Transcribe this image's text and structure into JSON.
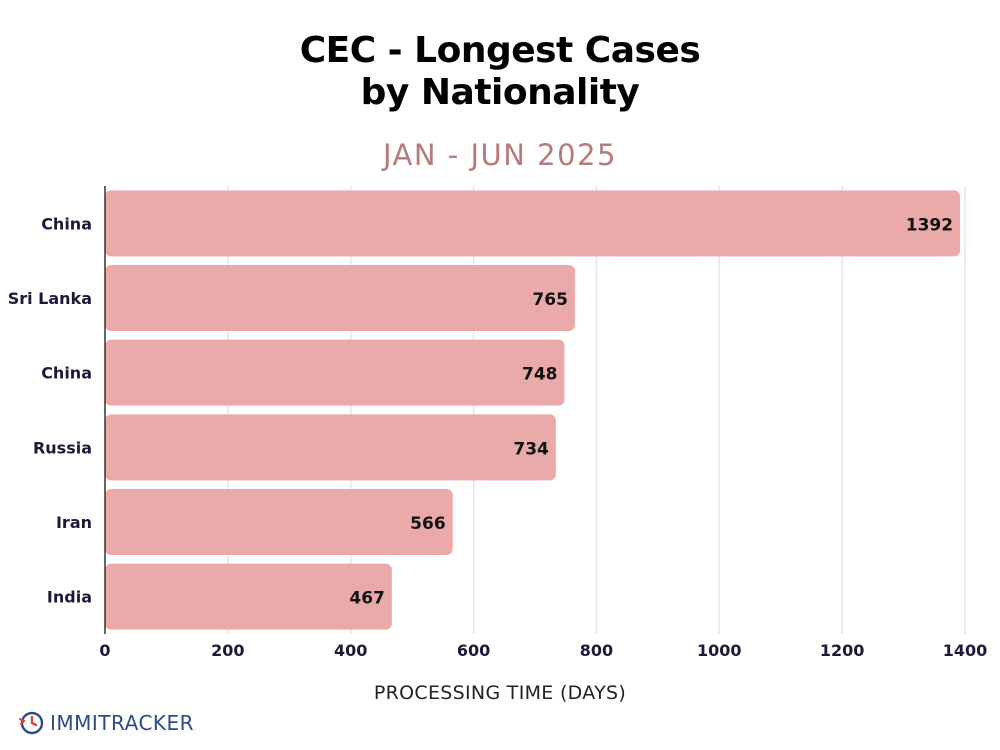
{
  "title_line1": "CEC - Longest Cases",
  "title_line2": "by Nationality",
  "subtitle": "JAN - JUN 2025",
  "logo_text": "IMMITRACKER",
  "colors": {
    "bar": "#ebaaaa",
    "grid": "#e6e6e6",
    "label": "#1c1a3a",
    "subtitle": "#b87b7b",
    "logo": "#2b4a86",
    "logo_accent": "#d9463b"
  },
  "chart_data": {
    "type": "bar",
    "orientation": "horizontal",
    "categories": [
      "China",
      "Sri Lanka",
      "China",
      "Russia",
      "Iran",
      "India"
    ],
    "values": [
      1392,
      765,
      748,
      734,
      566,
      467
    ],
    "xlabel": "PROCESSING TIME (DAYS)",
    "ylabel": "",
    "xlim": [
      0,
      1400
    ],
    "xticks": [
      0,
      200,
      400,
      600,
      800,
      1000,
      1200,
      1400
    ],
    "grid": true,
    "data_labels": true
  }
}
